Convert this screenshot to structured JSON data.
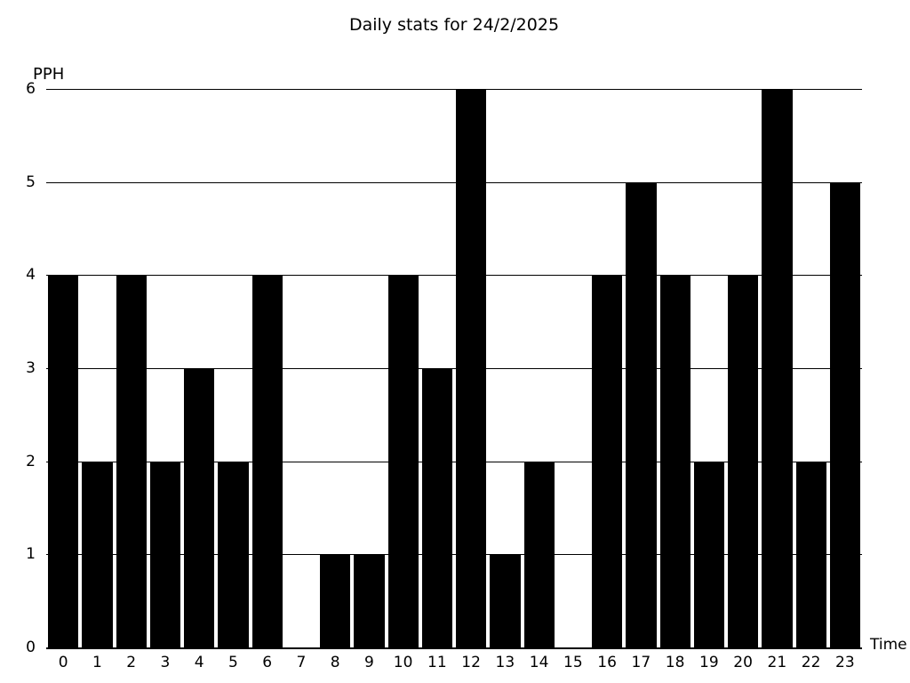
{
  "chart_data": {
    "type": "bar",
    "title": "Daily stats for 24/2/2025",
    "ylabel": "PPH",
    "xlabel": "Time",
    "categories": [
      "0",
      "1",
      "2",
      "3",
      "4",
      "5",
      "6",
      "7",
      "8",
      "9",
      "10",
      "11",
      "12",
      "13",
      "14",
      "15",
      "16",
      "17",
      "18",
      "19",
      "20",
      "21",
      "22",
      "23"
    ],
    "values": [
      4,
      2,
      4,
      2,
      3,
      2,
      4,
      0,
      1,
      1,
      4,
      3,
      6,
      1,
      2,
      0,
      4,
      5,
      4,
      2,
      4,
      6,
      2,
      5
    ],
    "ylim": [
      0,
      6
    ],
    "yticks": [
      0,
      1,
      2,
      3,
      4,
      5,
      6
    ],
    "grid": true,
    "legend_position": "none",
    "bar_color": "#000000",
    "background_color": "#ffffff",
    "text_color": "#000000"
  }
}
